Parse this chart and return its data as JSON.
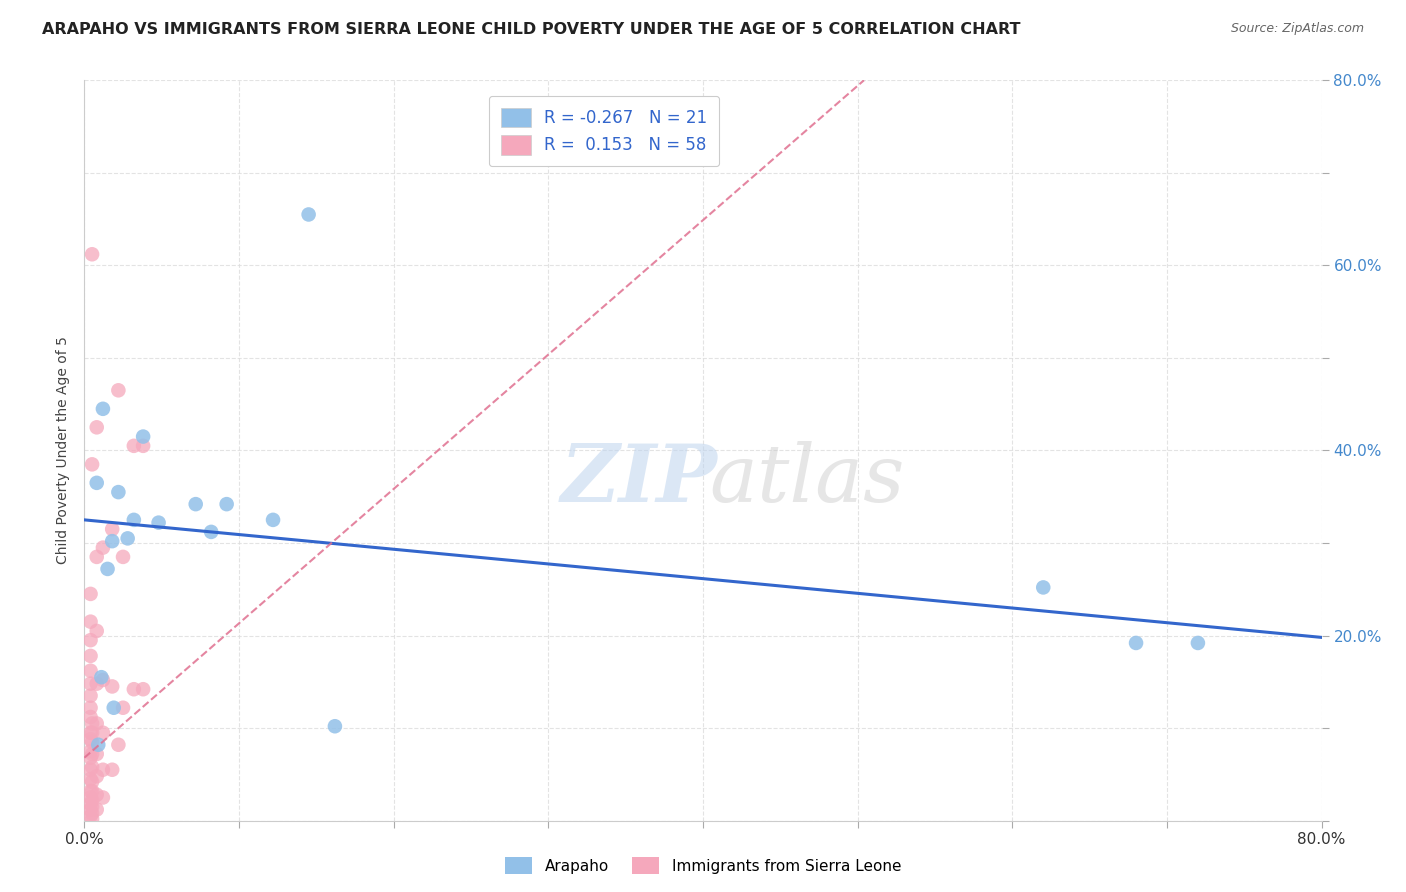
{
  "title": "ARAPAHO VS IMMIGRANTS FROM SIERRA LEONE CHILD POVERTY UNDER THE AGE OF 5 CORRELATION CHART",
  "source": "Source: ZipAtlas.com",
  "ylabel": "Child Poverty Under the Age of 5",
  "xlim": [
    0,
    0.8
  ],
  "ylim": [
    0,
    0.8
  ],
  "background_color": "#ffffff",
  "grid_color": "#dddddd",
  "legend_r_arapaho": "-0.267",
  "legend_n_arapaho": "21",
  "legend_r_sierra": "0.153",
  "legend_n_sierra": "58",
  "arapaho_color": "#92c0e8",
  "sierra_color": "#f5a8bc",
  "arapaho_line_color": "#3366cc",
  "sierra_line_color": "#e07090",
  "arapaho_x": [
    0.022,
    0.012,
    0.008,
    0.028,
    0.038,
    0.018,
    0.015,
    0.032,
    0.048,
    0.072,
    0.011,
    0.019,
    0.009,
    0.082,
    0.092,
    0.122,
    0.145,
    0.62,
    0.68,
    0.72,
    0.162
  ],
  "arapaho_y": [
    0.355,
    0.445,
    0.365,
    0.305,
    0.415,
    0.302,
    0.272,
    0.325,
    0.322,
    0.342,
    0.155,
    0.122,
    0.082,
    0.312,
    0.342,
    0.325,
    0.655,
    0.252,
    0.192,
    0.192,
    0.102
  ],
  "sierra_x": [
    0.004,
    0.004,
    0.004,
    0.004,
    0.004,
    0.004,
    0.004,
    0.004,
    0.004,
    0.004,
    0.004,
    0.004,
    0.004,
    0.004,
    0.004,
    0.004,
    0.004,
    0.004,
    0.004,
    0.004,
    0.008,
    0.008,
    0.008,
    0.008,
    0.008,
    0.008,
    0.008,
    0.008,
    0.008,
    0.012,
    0.012,
    0.012,
    0.012,
    0.012,
    0.018,
    0.018,
    0.018,
    0.022,
    0.022,
    0.025,
    0.025,
    0.032,
    0.032,
    0.038,
    0.038,
    0.005,
    0.005,
    0.005,
    0.005,
    0.005,
    0.005,
    0.005,
    0.005,
    0.005,
    0.005,
    0.005,
    0.005,
    0.005
  ],
  "sierra_y": [
    0.005,
    0.012,
    0.018,
    0.025,
    0.032,
    0.045,
    0.055,
    0.068,
    0.075,
    0.088,
    0.095,
    0.112,
    0.122,
    0.135,
    0.148,
    0.162,
    0.178,
    0.195,
    0.215,
    0.245,
    0.012,
    0.028,
    0.048,
    0.072,
    0.105,
    0.148,
    0.205,
    0.285,
    0.425,
    0.025,
    0.055,
    0.095,
    0.152,
    0.295,
    0.055,
    0.145,
    0.315,
    0.082,
    0.465,
    0.122,
    0.285,
    0.142,
    0.405,
    0.142,
    0.405,
    0.002,
    0.008,
    0.015,
    0.022,
    0.032,
    0.042,
    0.058,
    0.072,
    0.085,
    0.095,
    0.105,
    0.612,
    0.385
  ],
  "arapaho_line_x0": 0.0,
  "arapaho_line_y0": 0.325,
  "arapaho_line_x1": 0.8,
  "arapaho_line_y1": 0.198,
  "sierra_line_x0": 0.0,
  "sierra_line_y0": 0.068,
  "sierra_line_x1": 0.115,
  "sierra_line_y1": 0.235
}
